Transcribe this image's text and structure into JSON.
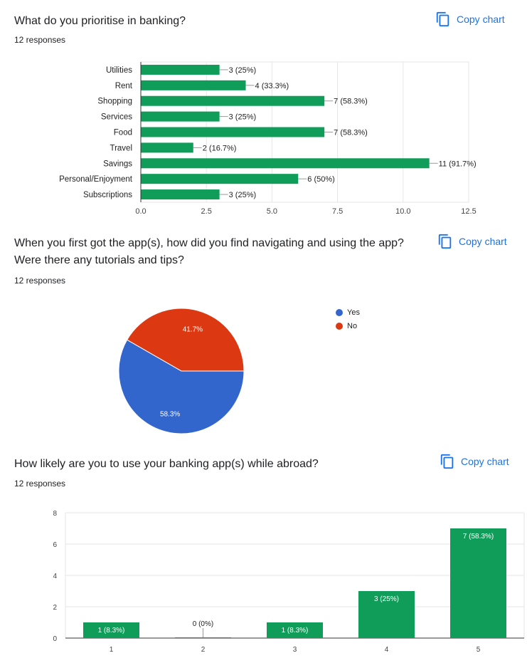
{
  "copy_label": "Copy chart",
  "colors": {
    "accent": "#1a73e8",
    "bar": "#109d59",
    "yes": "#3366cc",
    "no": "#dc3912",
    "grid": "#e6e6e6"
  },
  "icons": {
    "copy": "copy-icon"
  },
  "q1": {
    "title": "What do you prioritise in banking?",
    "responses": "12 responses"
  },
  "q2": {
    "title_line1": "When you first got the app(s), how did you find navigating and using the app?",
    "title_line2": "Were there any tutorials and tips?",
    "responses": "12 responses"
  },
  "q3": {
    "title": "How likely are you to use your banking app(s) while abroad?",
    "responses": "12 responses"
  },
  "chart_data": [
    {
      "type": "bar",
      "orientation": "horizontal",
      "categories": [
        "Utilities",
        "Rent",
        "Shopping",
        "Services",
        "Food",
        "Travel",
        "Savings",
        "Personal/Enjoyment",
        "Subscriptions"
      ],
      "values": [
        3,
        4,
        7,
        3,
        7,
        2,
        11,
        6,
        3
      ],
      "labels": [
        "3 (25%)",
        "4 (33.3%)",
        "7 (58.3%)",
        "3 (25%)",
        "7 (58.3%)",
        "2 (16.7%)",
        "11 (91.7%)",
        "6 (50%)",
        "3 (25%)"
      ],
      "xlim": [
        0,
        12.5
      ],
      "ticks": [
        "0.0",
        "2.5",
        "5.0",
        "7.5",
        "10.0",
        "12.5"
      ],
      "grid": true
    },
    {
      "type": "pie",
      "categories": [
        "Yes",
        "No"
      ],
      "values": [
        58.3,
        41.7
      ],
      "labels": [
        "58.3%",
        "41.7%"
      ],
      "legend": "right"
    },
    {
      "type": "bar",
      "orientation": "vertical",
      "categories": [
        "1",
        "2",
        "3",
        "4",
        "5"
      ],
      "values": [
        1,
        0,
        1,
        3,
        7
      ],
      "labels": [
        "1 (8.3%)",
        "0 (0%)",
        "1 (8.3%)",
        "3 (25%)",
        "7 (58.3%)"
      ],
      "ylim": [
        0,
        8
      ],
      "ticks": [
        "0",
        "2",
        "4",
        "6",
        "8"
      ],
      "grid": true
    }
  ]
}
